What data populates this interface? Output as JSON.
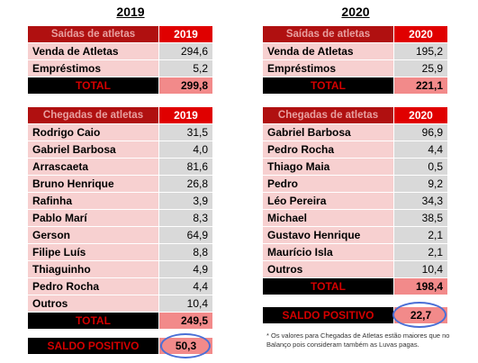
{
  "y2019": {
    "year": "2019",
    "saidas": {
      "title": "Saídas de atletas",
      "year_label": "2019",
      "rows": [
        {
          "label": "Venda de Atletas",
          "value": "294,6"
        },
        {
          "label": "Empréstimos",
          "value": "5,2"
        }
      ],
      "total_label": "TOTAL",
      "total_value": "299,8"
    },
    "chegadas": {
      "title": "Chegadas de atletas",
      "year_label": "2019",
      "rows": [
        {
          "label": "Rodrigo Caio",
          "value": "31,5"
        },
        {
          "label": "Gabriel Barbosa",
          "value": "4,0"
        },
        {
          "label": "Arrascaeta",
          "value": "81,6"
        },
        {
          "label": "Bruno Henrique",
          "value": "26,8"
        },
        {
          "label": "Rafinha",
          "value": "3,9"
        },
        {
          "label": "Pablo Marí",
          "value": "8,3"
        },
        {
          "label": "Gerson",
          "value": "64,9"
        },
        {
          "label": "Filipe Luís",
          "value": "8,8"
        },
        {
          "label": "Thiaguinho",
          "value": "4,9"
        },
        {
          "label": "Pedro Rocha",
          "value": "4,4"
        },
        {
          "label": "Outros",
          "value": "10,4"
        }
      ],
      "total_label": "TOTAL",
      "total_value": "249,5"
    },
    "saldo_label": "SALDO POSITIVO",
    "saldo_value": "50,3"
  },
  "y2020": {
    "year": "2020",
    "saidas": {
      "title": "Saídas de atletas",
      "year_label": "2020",
      "rows": [
        {
          "label": "Venda de Atletas",
          "value": "195,2"
        },
        {
          "label": "Empréstimos",
          "value": "25,9"
        }
      ],
      "total_label": "TOTAL",
      "total_value": "221,1"
    },
    "chegadas": {
      "title": "Chegadas de atletas",
      "year_label": "2020",
      "rows": [
        {
          "label": "Gabriel Barbosa",
          "value": "96,9"
        },
        {
          "label": "Pedro Rocha",
          "value": "4,4"
        },
        {
          "label": "Thiago Maia",
          "value": "0,5"
        },
        {
          "label": "Pedro",
          "value": "9,2"
        },
        {
          "label": "Léo Pereira",
          "value": "34,3"
        },
        {
          "label": "Michael",
          "value": "38,5"
        },
        {
          "label": "Gustavo Henrique",
          "value": "2,1"
        },
        {
          "label": "Maurício Isla",
          "value": "2,1"
        },
        {
          "label": "Outros",
          "value": "10,4"
        }
      ],
      "total_label": "TOTAL",
      "total_value": "198,4"
    },
    "saldo_label": "SALDO POSITIVO",
    "saldo_value": "22,7"
  },
  "note": "* Os valores para Chegadas de Atletas estão maiores que no Balanço pois consideram também as Luvas pagas."
}
